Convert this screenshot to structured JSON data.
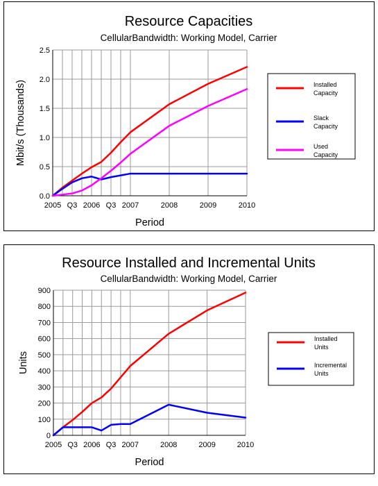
{
  "chart_data": [
    {
      "type": "line",
      "title": "Resource Capacities",
      "subtitle": "CellularBandwidth: Working Model, Carrier",
      "xlabel": "Period",
      "ylabel": "Mbit/s (Thousands)",
      "ylim": [
        0,
        2.5
      ],
      "yticks": [
        0,
        0.5,
        1.0,
        1.5,
        2.0,
        2.5
      ],
      "ytick_labels": [
        "0.0",
        "0.5",
        "1.0",
        "1.5",
        "2.0",
        "2.5"
      ],
      "xlim": [
        2005,
        2010
      ],
      "xticks": [
        2005,
        2005.5,
        2006,
        2006.5,
        2007,
        2008,
        2009,
        2010
      ],
      "xtick_labels": [
        "2005",
        "Q3",
        "2006",
        "Q3",
        "2007",
        "2008",
        "2009",
        "2010"
      ],
      "x_grid": [
        2005,
        2005.25,
        2005.5,
        2005.75,
        2006,
        2006.25,
        2006.5,
        2006.75,
        2007,
        2008,
        2009,
        2010
      ],
      "y_grid": [
        0,
        0.5,
        1.0,
        1.5,
        2.0,
        2.5
      ],
      "grid": true,
      "legend_position": "right",
      "series": [
        {
          "name": "Installed Capacity",
          "color": "#ff0000",
          "x": [
            2005,
            2005.25,
            2005.5,
            2005.75,
            2006,
            2006.25,
            2006.5,
            2006.75,
            2007,
            2008,
            2009,
            2010
          ],
          "y": [
            0,
            0.14,
            0.26,
            0.38,
            0.49,
            0.58,
            0.74,
            0.92,
            1.09,
            1.57,
            1.92,
            2.21
          ]
        },
        {
          "name": "Slack Capacity",
          "color": "#0000ff",
          "x": [
            2005,
            2005.25,
            2005.5,
            2005.75,
            2006,
            2006.25,
            2006.5,
            2006.75,
            2007,
            2008,
            2009,
            2010
          ],
          "y": [
            0,
            0.12,
            0.23,
            0.3,
            0.33,
            0.28,
            0.32,
            0.35,
            0.38,
            0.38,
            0.38,
            0.38
          ]
        },
        {
          "name": "Used Capacity",
          "color": "#ff00ff",
          "x": [
            2005,
            2005.25,
            2005.5,
            2005.75,
            2006,
            2006.25,
            2006.5,
            2006.75,
            2007,
            2008,
            2009,
            2010
          ],
          "y": [
            0,
            0.02,
            0.04,
            0.09,
            0.18,
            0.3,
            0.43,
            0.57,
            0.72,
            1.2,
            1.54,
            1.83
          ]
        }
      ]
    },
    {
      "type": "line",
      "title": "Resource Installed and Incremental Units",
      "subtitle": "CellularBandwidth: Working Model, Carrier",
      "xlabel": "Period",
      "ylabel": "Units",
      "ylim": [
        0,
        900
      ],
      "yticks": [
        0,
        100,
        200,
        300,
        400,
        500,
        600,
        700,
        800,
        900
      ],
      "ytick_labels": [
        "0",
        "100",
        "200",
        "300",
        "400",
        "500",
        "600",
        "700",
        "800",
        "900"
      ],
      "xlim": [
        2005,
        2010
      ],
      "xticks": [
        2005,
        2005.5,
        2006,
        2006.5,
        2007,
        2008,
        2009,
        2010
      ],
      "xtick_labels": [
        "2005",
        "Q3",
        "2006",
        "Q3",
        "2007",
        "2008",
        "2009",
        "2010"
      ],
      "x_grid": [
        2005,
        2005.25,
        2005.5,
        2005.75,
        2006,
        2006.25,
        2006.5,
        2006.75,
        2007,
        2008,
        2009,
        2010
      ],
      "y_grid": [
        0,
        100,
        200,
        300,
        400,
        500,
        600,
        700,
        800,
        900
      ],
      "grid": true,
      "legend_position": "right",
      "series": [
        {
          "name": "Installed Units",
          "color": "#ff0000",
          "x": [
            2005,
            2005.25,
            2005.5,
            2005.75,
            2006,
            2006.25,
            2006.5,
            2006.75,
            2007,
            2008,
            2009,
            2010
          ],
          "y": [
            0,
            50,
            95,
            145,
            200,
            235,
            290,
            360,
            430,
            630,
            775,
            885
          ]
        },
        {
          "name": "Incremental Units",
          "color": "#0000ff",
          "x": [
            2005,
            2005.25,
            2005.5,
            2005.75,
            2006,
            2006.25,
            2006.5,
            2006.75,
            2007,
            2008,
            2009,
            2010
          ],
          "y": [
            0,
            50,
            50,
            50,
            50,
            30,
            65,
            70,
            70,
            190,
            140,
            110
          ]
        }
      ]
    }
  ]
}
